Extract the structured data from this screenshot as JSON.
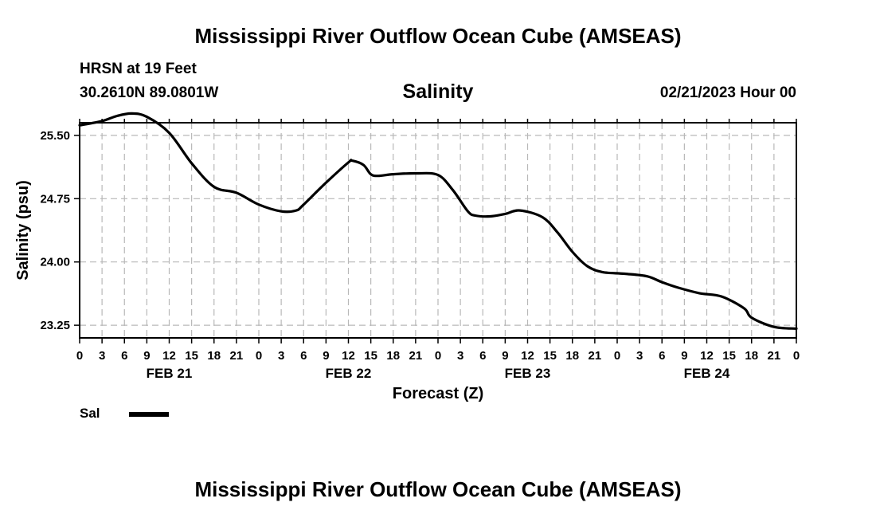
{
  "header": {
    "title": "Mississippi River Outflow Ocean Cube (AMSEAS)",
    "station": "HRSN at 19 Feet",
    "coordinates": "30.2610N  89.0801W",
    "plot_title": "Salinity",
    "date": "02/21/2023 Hour 00"
  },
  "footer": {
    "title": "Mississippi River Outflow Ocean Cube (AMSEAS)"
  },
  "legend": {
    "label": "Sal",
    "color": "#000000"
  },
  "chart_data": {
    "type": "line",
    "title": "Salinity",
    "xlabel": "Forecast (Z)",
    "ylabel": "Salinity (psu)",
    "xlim": [
      0,
      96
    ],
    "ylim": [
      23.1,
      25.65
    ],
    "yticks": [
      23.25,
      24.0,
      24.75,
      25.5
    ],
    "ytick_labels": [
      "23.25",
      "24.00",
      "24.75",
      "25.50"
    ],
    "xtick_labels": [
      "0",
      "3",
      "6",
      "9",
      "12",
      "15",
      "18",
      "21",
      "0",
      "3",
      "6",
      "9",
      "12",
      "15",
      "18",
      "21",
      "0",
      "3",
      "6",
      "9",
      "12",
      "15",
      "18",
      "21",
      "0",
      "3",
      "6",
      "9",
      "12",
      "15",
      "18",
      "21",
      "0"
    ],
    "day_labels": [
      {
        "label": "FEB 21",
        "hour": 12
      },
      {
        "label": "FEB 22",
        "hour": 36
      },
      {
        "label": "FEB 23",
        "hour": 60
      },
      {
        "label": "FEB 24",
        "hour": 84
      }
    ],
    "grid": true,
    "series": [
      {
        "name": "Sal",
        "x": [
          0,
          3,
          5,
          7,
          9,
          12,
          15,
          18,
          21,
          24,
          27,
          29,
          30,
          33,
          36,
          36.5,
          38,
          39,
          40,
          42,
          45,
          48,
          50,
          52,
          53,
          55,
          57,
          59,
          62,
          64,
          66,
          68,
          70,
          73,
          76,
          78,
          80,
          83,
          86,
          89,
          90,
          93,
          96
        ],
        "y": [
          25.62,
          25.67,
          25.73,
          25.76,
          25.72,
          25.53,
          25.17,
          24.89,
          24.82,
          24.68,
          24.6,
          24.61,
          24.68,
          24.94,
          25.18,
          25.2,
          25.15,
          25.04,
          25.02,
          25.04,
          25.05,
          25.03,
          24.85,
          24.6,
          24.55,
          24.54,
          24.57,
          24.61,
          24.53,
          24.35,
          24.12,
          23.95,
          23.88,
          23.86,
          23.83,
          23.76,
          23.7,
          23.63,
          23.59,
          23.45,
          23.34,
          23.23,
          23.21
        ]
      }
    ]
  }
}
